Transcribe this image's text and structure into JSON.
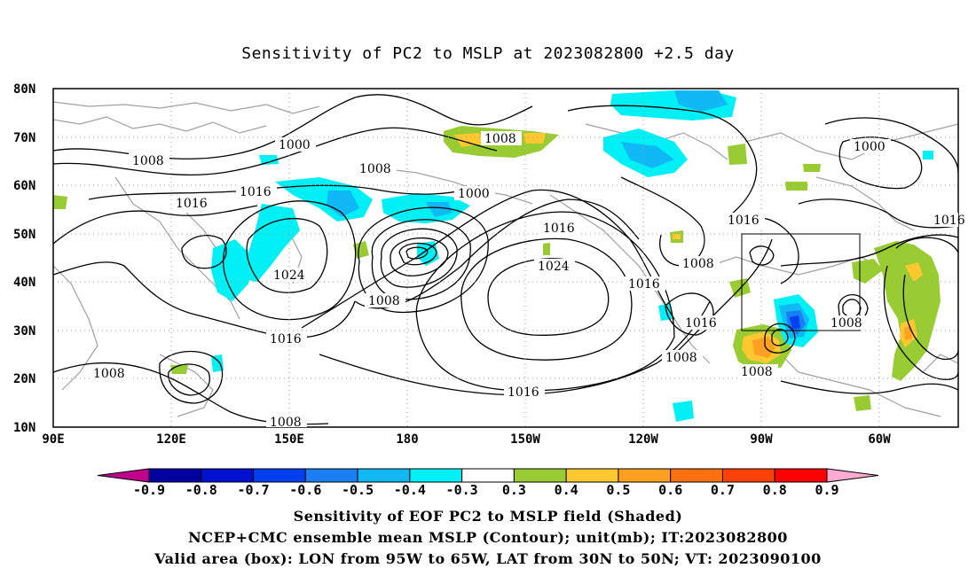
{
  "title": "Sensitivity of PC2 to MSLP at 2023082800 +2.5 day",
  "axes": {
    "lat_labels": [
      "80N",
      "70N",
      "60N",
      "50N",
      "40N",
      "30N",
      "20N",
      "10N"
    ],
    "lon_labels": [
      "90E",
      "120E",
      "150E",
      "180",
      "150W",
      "120W",
      "90W",
      "60W"
    ]
  },
  "colorbar": {
    "labels": [
      "-0.9",
      "-0.8",
      "-0.7",
      "-0.6",
      "-0.5",
      "-0.4",
      "-0.3",
      "0.3",
      "0.4",
      "0.5",
      "0.6",
      "0.7",
      "0.8",
      "0.9"
    ],
    "colors": [
      "#c0008c",
      "#0000a0",
      "#0010d0",
      "#0040f0",
      "#1a7ff5",
      "#10b8f5",
      "#00f0f5",
      "#ffffff",
      "#99cc33",
      "#ffc830",
      "#ffa020",
      "#ff7010",
      "#ff4000",
      "#ff0000",
      "#ffaad2"
    ]
  },
  "contour_labels": [
    "1000",
    "1008",
    "1016",
    "1024"
  ],
  "footer": {
    "line1": "Sensitivity of EOF PC2 to MSLP field (Shaded)",
    "line2": "NCEP+CMC ensemble mean MSLP (Contour); unit(mb); IT:2023082800",
    "line3": "Valid area (box): LON from 95W to 65W, LAT from 30N to 50N; VT: 2023090100"
  },
  "colors": {
    "contour": "#000000",
    "coastline": "#a0a0a0",
    "grid": "#999999"
  }
}
